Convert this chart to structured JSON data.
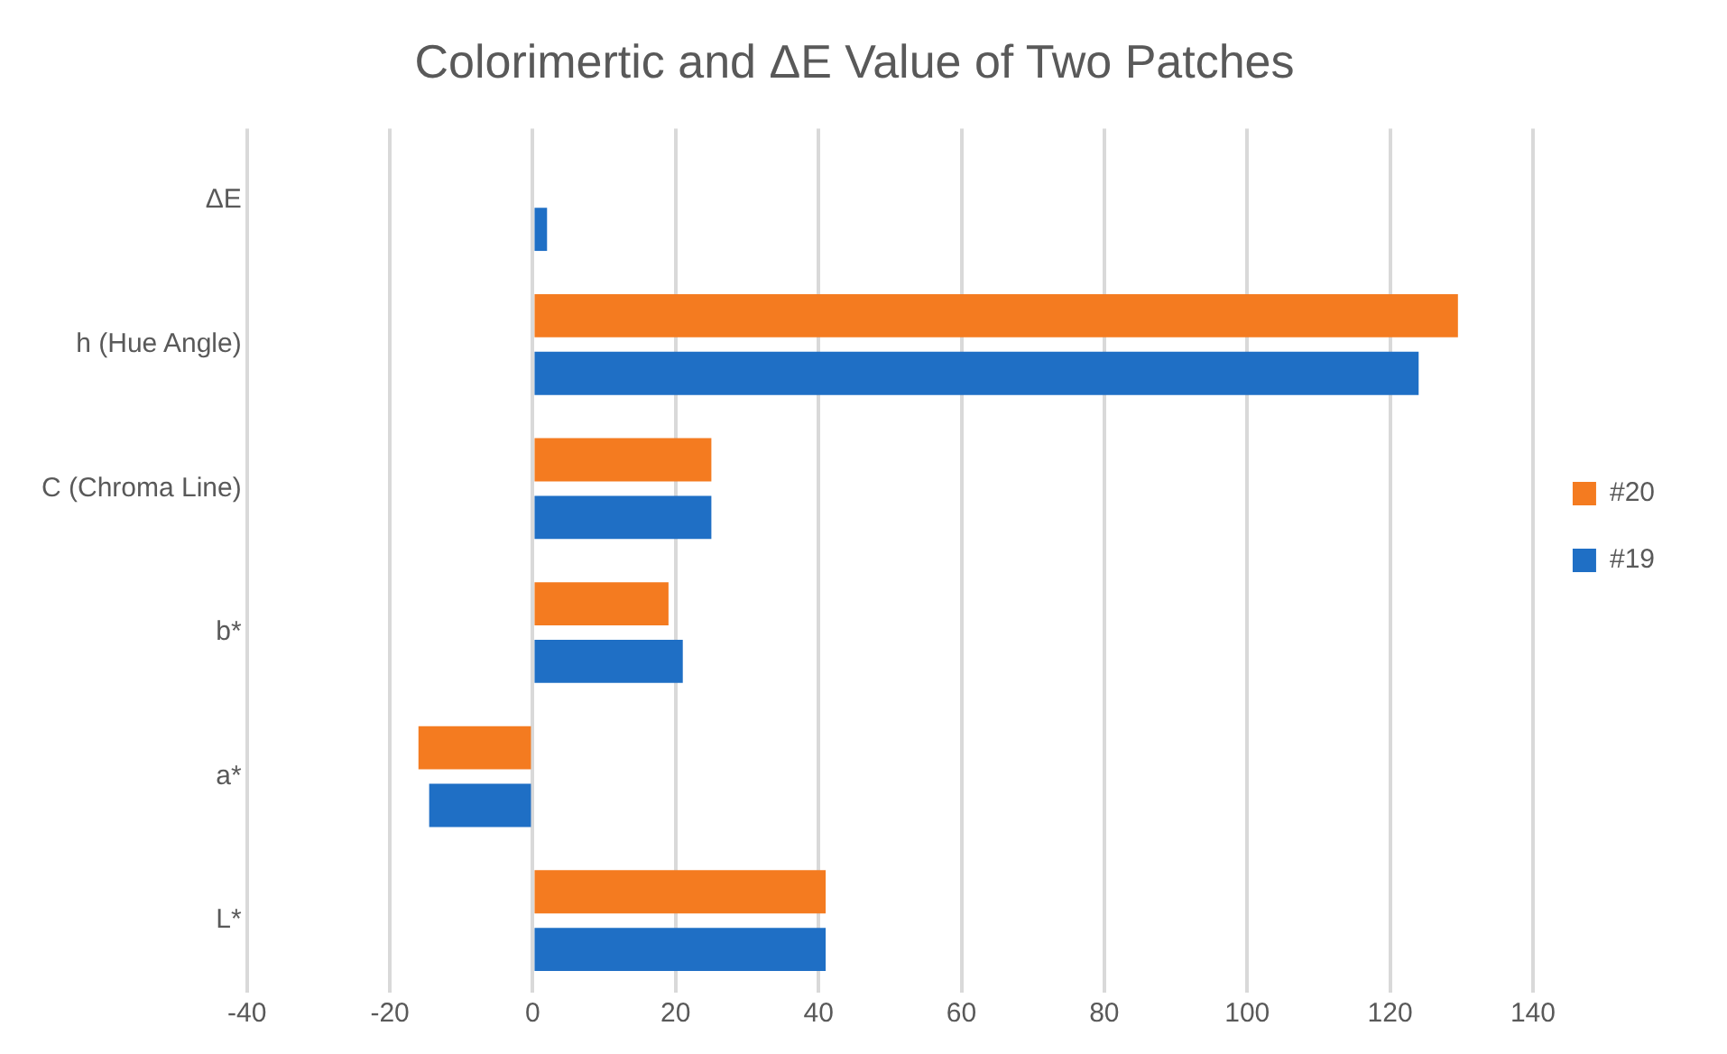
{
  "chart_data": {
    "type": "bar",
    "orientation": "horizontal",
    "title": "Colorimertic and ΔE Value of Two Patches",
    "categories": [
      "ΔE",
      "h (Hue Angle)",
      "C (Chroma Line)",
      "b*",
      "a*",
      "L*"
    ],
    "series": [
      {
        "name": "#20",
        "color": "#f47b20",
        "values": [
          null,
          129.5,
          25,
          19,
          -16,
          41
        ]
      },
      {
        "name": "#19",
        "color": "#1f6fc5",
        "values": [
          2,
          124,
          25,
          21,
          -14.5,
          41
        ]
      }
    ],
    "xlim": [
      -40,
      140
    ],
    "xticks": [
      -40,
      -20,
      0,
      20,
      40,
      60,
      80,
      100,
      120,
      140
    ],
    "grid": "x",
    "legend": "right"
  }
}
